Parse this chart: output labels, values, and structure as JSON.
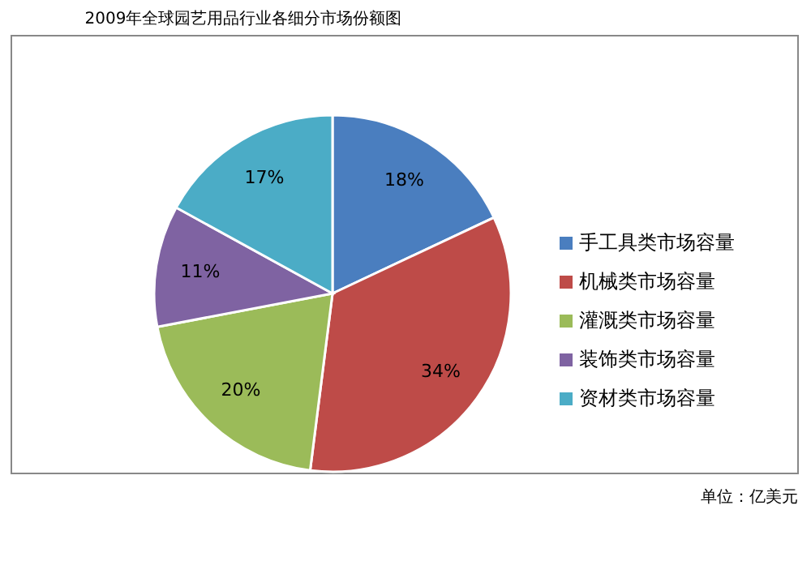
{
  "chart_data": {
    "type": "pie",
    "title": "2009年全球园艺用品行业各细分市场份额图",
    "categories": [
      "手工具类市场容量",
      "机械类市场容量",
      "灌溉类市场容量",
      "装饰类市场容量",
      "资材类市场容量"
    ],
    "values": [
      18,
      34,
      20,
      11,
      17
    ],
    "colors": [
      "#4a7ebf",
      "#be4b48",
      "#9bbb59",
      "#7f63a2",
      "#4bacc6"
    ],
    "value_labels": [
      "18%",
      "34%",
      "20%",
      "11%",
      "17%"
    ],
    "legend": "right",
    "annotations": [
      "单位：亿美元"
    ]
  }
}
